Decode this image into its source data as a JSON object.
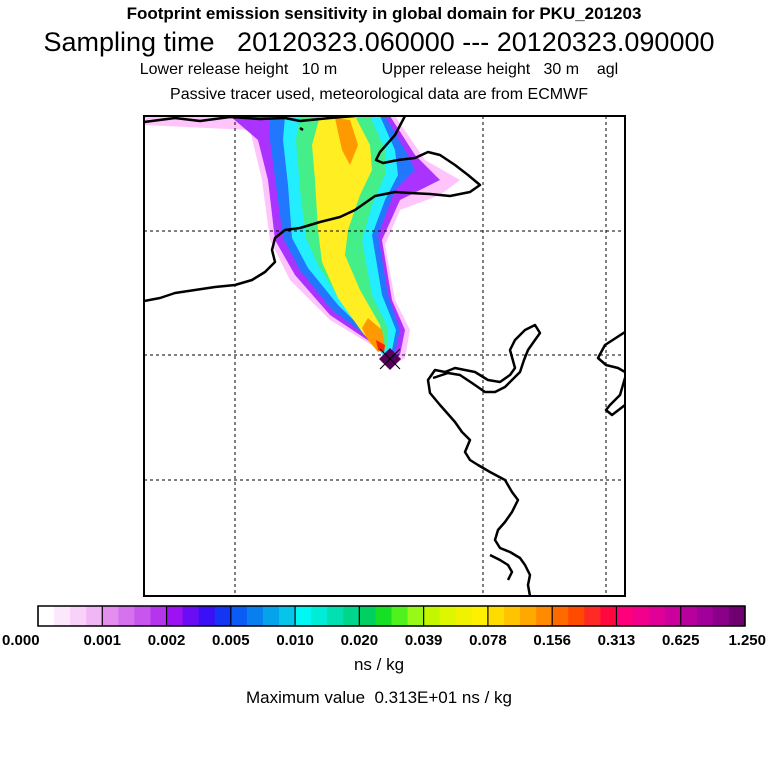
{
  "titles": {
    "line1": "Footprint emission sensitivity in global domain for PKU_201203",
    "line2": "Sampling time   20120323.060000 --- 20120323.090000",
    "line3": "Lower release height   10 m          Upper release height   30 m    agl",
    "line4": "Passive tracer used, meteorological data are from ECMWF"
  },
  "colorbar": {
    "tick_labels": [
      "0.000",
      "0.001",
      "0.002",
      "0.005",
      "0.010",
      "0.020",
      "0.039",
      "0.078",
      "0.156",
      "0.313",
      "0.625",
      "1.250"
    ],
    "colors": [
      "#ffffff",
      "#fce8fc",
      "#f8d2f8",
      "#f1b6f5",
      "#e48ff0",
      "#d672ee",
      "#c855ee",
      "#b534ee",
      "#9c12f2",
      "#6a0df4",
      "#3a10f6",
      "#1435f3",
      "#0b5cf4",
      "#087fef",
      "#05a3ec",
      "#05c5ea",
      "#00f7f3",
      "#00ecd6",
      "#00e0b0",
      "#00d58c",
      "#00d060",
      "#16e023",
      "#4ff21d",
      "#98f918",
      "#c3f700",
      "#dcf700",
      "#f0f200",
      "#fff000",
      "#ffdc00",
      "#ffc300",
      "#ffa800",
      "#ff8a00",
      "#ff6a00",
      "#ff4a00",
      "#ff2a25",
      "#ff0840",
      "#ff007a",
      "#f2008c",
      "#e00098",
      "#cc009d",
      "#b8009d",
      "#a2009a",
      "#8a0088",
      "#6e0070"
    ],
    "units": "ns / kg"
  },
  "maximum": "Maximum value  0.313E+01 ns / kg",
  "plume_colors": {
    "edge": "#ff55f5",
    "violet": "#aa33ff",
    "blue": "#2277ff",
    "cyan": "#22eeff",
    "green": "#44ee88",
    "yellow": "#ffee22",
    "orange": "#ff9900",
    "red": "#ff2200",
    "release": "#55005a"
  }
}
